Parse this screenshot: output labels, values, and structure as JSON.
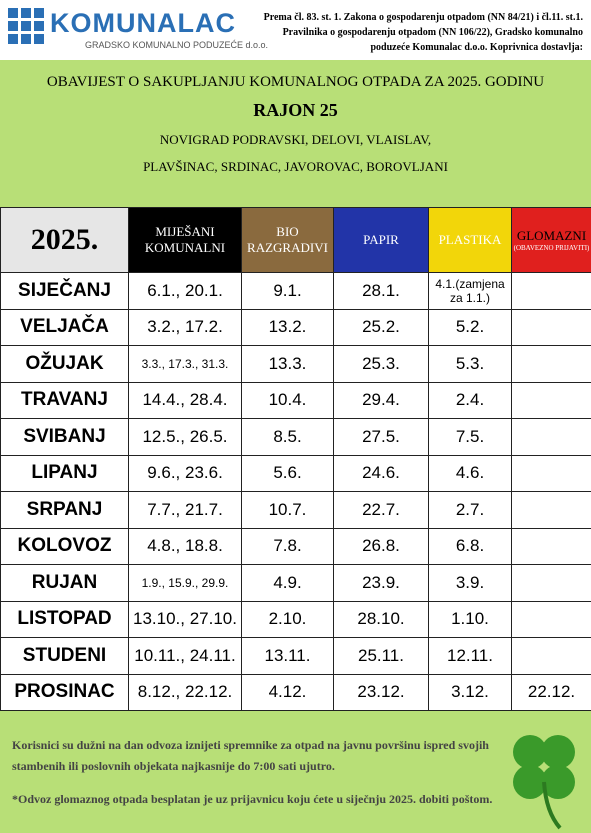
{
  "header": {
    "logo_name": "KOMUNALAC",
    "logo_subtitle": "GRADSKO KOMUNALNO PODUZEĆE d.o.o.",
    "notice": "Prema čl. 83. st. 1. Zakona o gospodarenju otpadom (NN 84/21) i čl.11. st.1. Pravilnika o gospodarenju otpadom (NN 106/22), Gradsko komunalno poduzeće Komunalac d.o.o. Koprivnica dostavlja:"
  },
  "title": {
    "line1": "OBAVIJEST O SAKUPLJANJU KOMUNALNOG OTPADA ZA 2025. GODINU",
    "district": "RAJON 25",
    "places1": "NOVIGRAD PODRAVSKI, DELOVI, VLAISLAV,",
    "places2": "PLAVŠINAC, SRDINAC, JAVOROVAC, BOROVLJANI"
  },
  "table": {
    "year": "2025.",
    "columns": [
      "MIJEŠANI KOMUNALNI",
      "BIO RAZGRADIVI",
      "PAPIR",
      "PLASTIKA",
      "GLOMAZNI"
    ],
    "glomazni_note": "(OBAVEZNO PRIJAVITI)",
    "rows": [
      [
        "SIJEČANJ",
        "6.1., 20.1.",
        "9.1.",
        "28.1.",
        "4.1.(zamjena za 1.1.)",
        null
      ],
      [
        "VELJAČA",
        "3.2., 17.2.",
        "13.2.",
        "25.2.",
        "5.2.",
        null
      ],
      [
        "OŽUJAK",
        "3.3., 17.3., 31.3.",
        "13.3.",
        "25.3.",
        "5.3.",
        null
      ],
      [
        "TRAVANJ",
        "14.4., 28.4.",
        "10.4.",
        "29.4.",
        "2.4.",
        null
      ],
      [
        "SVIBANJ",
        "12.5., 26.5.",
        "8.5.",
        "27.5.",
        "7.5.",
        null
      ],
      [
        "LIPANJ",
        "9.6., 23.6.",
        "5.6.",
        "24.6.",
        "4.6.",
        null
      ],
      [
        "SRPANJ",
        "7.7., 21.7.",
        "10.7.",
        "22.7.",
        "2.7.",
        null
      ],
      [
        "KOLOVOZ",
        "4.8., 18.8.",
        "7.8.",
        "26.8.",
        "6.8.",
        null
      ],
      [
        "RUJAN",
        "1.9., 15.9., 29.9.",
        "4.9.",
        "23.9.",
        "3.9.",
        null
      ],
      [
        "LISTOPAD",
        "13.10., 27.10.",
        "2.10.",
        "28.10.",
        "1.10.",
        null
      ],
      [
        "STUDENI",
        "10.11., 24.11.",
        "13.11.",
        "25.11.",
        "12.11.",
        null
      ],
      [
        "PROSINAC",
        "8.12., 22.12.",
        "4.12.",
        "23.12.",
        "3.12.",
        "22.12."
      ]
    ]
  },
  "footer": {
    "note1": "Korisnici su dužni na dan odvoza iznijeti spremnike za otpad na javnu površinu ispred svojih stambenih ili poslovnih objekata najkasnije do 7:00 sati ujutro.",
    "note2": "*Odvoz glomaznog otpada besplatan je uz prijavnicu koju ćete u siječnju 2025. dobiti poštom."
  }
}
